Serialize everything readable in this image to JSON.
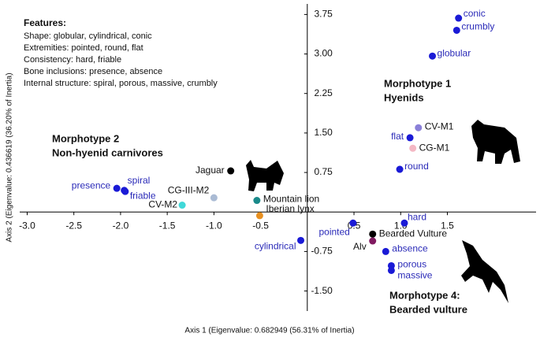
{
  "chart_data": {
    "type": "scatter",
    "x_label": "Axis 1 (Eigenvalue: 0.682949 (56.31% of Inertia)",
    "y_label": "Axis 2 (Eigenvalue: 0.436619 (36.20% of Inertia)",
    "xlim": [
      -3.08,
      2.45
    ],
    "ylim": [
      -1.88,
      3.95
    ],
    "xticks": [
      {
        "value": -3,
        "label": "-3.0"
      },
      -2.5,
      {
        "value": -2,
        "label": "-2.0"
      },
      -1.5,
      {
        "value": -1,
        "label": "-1.0"
      },
      -0.5,
      0.5,
      {
        "value": 1,
        "label": "1.0"
      },
      1.5
    ],
    "yticks": [
      3.75,
      {
        "value": 3,
        "label": "3.00"
      },
      2.25,
      {
        "value": 1.5,
        "label": "1.50"
      },
      0.75,
      -0.75,
      {
        "value": -1.5,
        "label": "-1.50"
      }
    ],
    "points": [
      {
        "label": "conic",
        "x": 1.62,
        "y": 3.68,
        "color": "#1a1ad6"
      },
      {
        "label": "crumbly",
        "x": 1.6,
        "y": 3.45,
        "color": "#1a1ad6"
      },
      {
        "label": "globular",
        "x": 1.34,
        "y": 2.96,
        "color": "#1a1ad6"
      },
      {
        "label": "CV-M1",
        "x": 1.19,
        "y": 1.6,
        "color": "#8a80d8"
      },
      {
        "label": "flat",
        "x": 1.1,
        "y": 1.41,
        "color": "#1a1ad6"
      },
      {
        "label": "CG-M1",
        "x": 1.13,
        "y": 1.21,
        "color": "#f4b8c4"
      },
      {
        "label": "round",
        "x": 0.99,
        "y": 0.81,
        "color": "#1a1ad6"
      },
      {
        "label": "Jaguar",
        "x": -0.82,
        "y": 0.78,
        "color": "#000000"
      },
      {
        "label": "presence",
        "x": -2.04,
        "y": 0.45,
        "color": "#1a1ad6"
      },
      {
        "label": "spiral",
        "x": -1.96,
        "y": 0.41,
        "color": "#1a1ad6"
      },
      {
        "label": "friable",
        "x": -1.95,
        "y": 0.39,
        "color": "#1a1ad6"
      },
      {
        "label": "CG-III-M2",
        "x": -1.0,
        "y": 0.27,
        "color": "#aabbd4"
      },
      {
        "label": "CV-M2",
        "x": -1.34,
        "y": 0.13,
        "color": "#40d8d8"
      },
      {
        "label": "Mountain lion",
        "x": -0.54,
        "y": 0.22,
        "color": "#1a8a8a"
      },
      {
        "label": "Iberian lynx",
        "x": -0.51,
        "y": -0.07,
        "color": "#e89020"
      },
      {
        "label": "cylindrical",
        "x": -0.07,
        "y": -0.54,
        "color": "#1a1ad6"
      },
      {
        "label": "pointed",
        "x": 0.49,
        "y": -0.21,
        "color": "#1a1ad6"
      },
      {
        "label": "hard",
        "x": 1.04,
        "y": -0.21,
        "color": "#1a1ad6"
      },
      {
        "label": "Bearded Vulture",
        "x": 0.7,
        "y": -0.42,
        "color": "#000000"
      },
      {
        "label": "Alv",
        "x": 0.7,
        "y": -0.55,
        "color": "#801a60"
      },
      {
        "label": "absence",
        "x": 0.84,
        "y": -0.75,
        "color": "#1a1ad6"
      },
      {
        "label": "porous",
        "x": 0.9,
        "y": -1.02,
        "color": "#1a1ad6"
      },
      {
        "label": "massive",
        "x": 0.9,
        "y": -1.11,
        "color": "#1a1ad6"
      }
    ],
    "features": {
      "title": "Features:",
      "lines": [
        "Shape: globular, cylindrical, conic",
        "Extremities: pointed, round, flat",
        "Consistency: hard, friable",
        "Bone inclusions: presence, absence",
        "Internal structure: spiral, porous, massive, crumbly"
      ]
    },
    "groups": [
      [
        "Morphotype 1",
        "Hyenids"
      ],
      [
        "Morphotype 2",
        "Non-hyenid carnivores"
      ],
      [
        "Morphotype 4:",
        "Bearded vulture"
      ]
    ]
  }
}
